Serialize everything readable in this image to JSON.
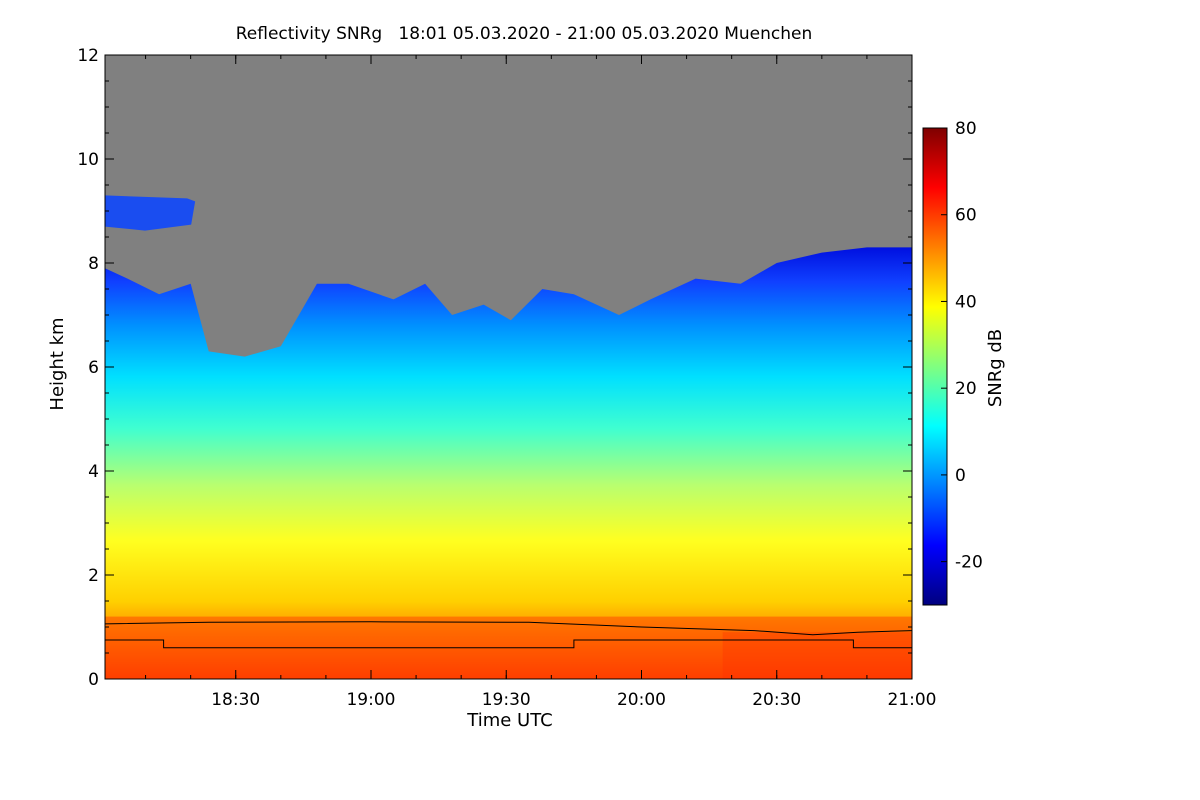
{
  "chart_data": {
    "type": "heatmap",
    "title": "Reflectivity SNRg   18:01 05.03.2020 - 21:00 05.03.2020 Muenchen",
    "xlabel": "Time UTC",
    "ylabel": "Height km",
    "x_range_minutes": [
      1081,
      1260
    ],
    "x_ticks": [
      {
        "minute": 1110,
        "label": "18:30"
      },
      {
        "minute": 1140,
        "label": "19:00"
      },
      {
        "minute": 1170,
        "label": "19:30"
      },
      {
        "minute": 1200,
        "label": "20:00"
      },
      {
        "minute": 1230,
        "label": "20:30"
      },
      {
        "minute": 1260,
        "label": "21:00"
      }
    ],
    "ylim": [
      0,
      12
    ],
    "y_ticks": [
      0,
      2,
      4,
      6,
      8,
      10,
      12
    ],
    "colorbar": {
      "label": "SNRg dB",
      "range": [
        -30,
        80
      ],
      "ticks": [
        -20,
        0,
        20,
        40,
        60,
        80
      ],
      "colors": [
        "#00007f",
        "#0000ff",
        "#0080ff",
        "#00ffff",
        "#80ff80",
        "#ffff00",
        "#ff8000",
        "#ff0000",
        "#7f0000"
      ]
    },
    "no_signal_color": "#808080",
    "cloud_top_km": [
      {
        "t": 1081,
        "h": 7.9
      },
      {
        "t": 1086,
        "h": 7.7
      },
      {
        "t": 1093,
        "h": 7.4
      },
      {
        "t": 1100,
        "h": 7.6
      },
      {
        "t": 1104,
        "h": 6.3
      },
      {
        "t": 1112,
        "h": 6.2
      },
      {
        "t": 1120,
        "h": 6.4
      },
      {
        "t": 1124,
        "h": 7.0
      },
      {
        "t": 1128,
        "h": 7.6
      },
      {
        "t": 1135,
        "h": 7.6
      },
      {
        "t": 1145,
        "h": 7.3
      },
      {
        "t": 1152,
        "h": 7.6
      },
      {
        "t": 1158,
        "h": 7.0
      },
      {
        "t": 1165,
        "h": 7.2
      },
      {
        "t": 1171,
        "h": 6.9
      },
      {
        "t": 1178,
        "h": 7.5
      },
      {
        "t": 1185,
        "h": 7.4
      },
      {
        "t": 1195,
        "h": 7.0
      },
      {
        "t": 1202,
        "h": 7.3
      },
      {
        "t": 1212,
        "h": 7.7
      },
      {
        "t": 1222,
        "h": 7.6
      },
      {
        "t": 1230,
        "h": 8.0
      },
      {
        "t": 1240,
        "h": 8.2
      },
      {
        "t": 1250,
        "h": 8.3
      },
      {
        "t": 1260,
        "h": 8.3
      }
    ],
    "cirrus_patch": {
      "t_start": 1081,
      "t_end": 1101,
      "h_bottom": 8.7,
      "h_top": 9.3
    },
    "line_upper_km": [
      {
        "t": 1081,
        "h": 1.06
      },
      {
        "t": 1104,
        "h": 1.09
      },
      {
        "t": 1140,
        "h": 1.1
      },
      {
        "t": 1175,
        "h": 1.09
      },
      {
        "t": 1200,
        "h": 1.0
      },
      {
        "t": 1225,
        "h": 0.93
      },
      {
        "t": 1238,
        "h": 0.85
      },
      {
        "t": 1248,
        "h": 0.9
      },
      {
        "t": 1260,
        "h": 0.93
      }
    ],
    "line_lower_km": [
      {
        "t": 1081,
        "h": 0.75
      },
      {
        "t": 1094,
        "h": 0.75
      },
      {
        "t": 1094,
        "h": 0.6
      },
      {
        "t": 1185,
        "h": 0.6
      },
      {
        "t": 1185,
        "h": 0.75
      },
      {
        "t": 1247,
        "h": 0.75
      },
      {
        "t": 1247,
        "h": 0.6
      },
      {
        "t": 1260,
        "h": 0.6
      }
    ]
  }
}
